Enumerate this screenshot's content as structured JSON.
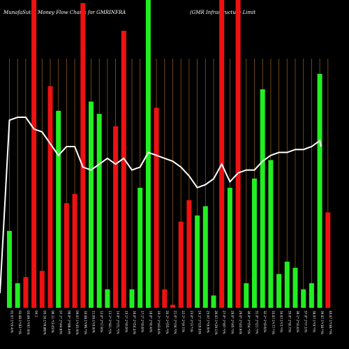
{
  "header": {
    "title_left": "MunafaSutra  Money Flow  Charts for GMRINFRA",
    "title_right": "(GMR Infrastructure   Limit"
  },
  "colors": {
    "background": "#000000",
    "up": "#22ee22",
    "down": "#ee1111",
    "grid": "#8a5a12",
    "line": "#ffffff",
    "text": "#ffffff"
  },
  "chart_data": {
    "type": "bar",
    "title": "MunafaSutra  Money Flow  Charts for GMRINFRA (GMR Infrastructure   Limit",
    "ylim": [
      0,
      100
    ],
    "grid": "vertical",
    "values": [
      25,
      8,
      10,
      100,
      12,
      72,
      64,
      34,
      37,
      99,
      67,
      63,
      6,
      59,
      90,
      6,
      39,
      100,
      65,
      6,
      1,
      28,
      35,
      30,
      33,
      4,
      100,
      39,
      100,
      8,
      42,
      71,
      48,
      11,
      15,
      13,
      6,
      8,
      76,
      31
    ],
    "directions": [
      "up",
      "up",
      "down",
      "down",
      "down",
      "down",
      "up",
      "down",
      "down",
      "down",
      "up",
      "up",
      "up",
      "down",
      "down",
      "up",
      "up",
      "up",
      "down",
      "down",
      "down",
      "down",
      "down",
      "up",
      "up",
      "up",
      "down",
      "up",
      "down",
      "up",
      "up",
      "up",
      "up",
      "up",
      "up",
      "up",
      "up",
      "up",
      "up",
      "down"
    ],
    "line": [
      64,
      65,
      65,
      61,
      60,
      56,
      52,
      55,
      55,
      48,
      47,
      49,
      51,
      49,
      51,
      47,
      48,
      53,
      52,
      51,
      50,
      48,
      45,
      41,
      42,
      44,
      49,
      43,
      46,
      47,
      47,
      50,
      52,
      53,
      53,
      54,
      54,
      55,
      57,
      55
    ],
    "line_start": 5,
    "categories": [
      "01.07.1*(9.4)%",
      "02.08.1*(83.*)%",
      "03.09.1*(97.9)%",
      "04.1",
      "05.10.1*(6.86)%",
      "06.11.*(3.45)%",
      "07.1*.1*(44.6)%",
      "08.0*.1*(88.4)%",
      "09.07.1*(45.9)%",
      "10.08.1*(96.*)%",
      "11.09.1*(9.9)%",
      "12.0*.1*(7.9)%",
      "13.1*.1*(81.*)%",
      "14.0*.1*(31.*)%",
      "15.1*.1*(9.9)%",
      "16.0*.1*(54.4)%",
      "17.1*.1*(9.8)%",
      "18.0*.1*(0.4)%",
      "19.1*.1*(43.6)%",
      "20.1*.1*(55.*)%",
      "21.0*.1*(34.*)%",
      "22.1*.1*(9.7)%",
      "23.0*.1*(3.*)%",
      "24.1*.1*(19.0)%",
      "25.07.1*(9.9)%",
      "26.07.1*(29.1)%",
      "27.0*.1*(87.*)%",
      "28.0*.1*(45.*)%",
      "29.0*.1*(43.9)%",
      "30.0*.1*(54.*)%",
      "31.0*.1*(21.*)%",
      "32.1*.1*(0.6)%",
      "33.07.1*(77.*)%",
      "34.07.1*(3.*)%",
      "35.0*.1*(8.7)%",
      "36.1*.1*(4.4)%",
      "37.0*.1*(7.1)%",
      "38.07.1*(9.*)%",
      "39.07.1*(38.*)%",
      "40.07.1*(48.*)%"
    ]
  }
}
